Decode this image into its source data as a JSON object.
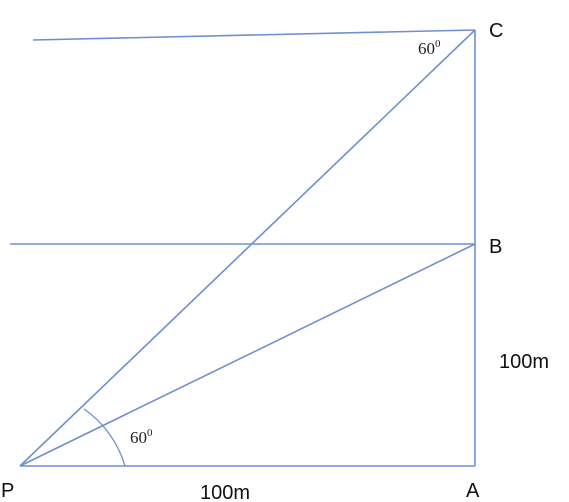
{
  "diagram": {
    "points": {
      "p": "P",
      "a": "A",
      "b": "B",
      "c": "C"
    },
    "lengths": {
      "ab": "100m",
      "pa": "100m"
    },
    "angles": {
      "at_p": {
        "value": "60",
        "unit": "0"
      },
      "at_c": {
        "value": "60",
        "unit": "0"
      }
    }
  }
}
